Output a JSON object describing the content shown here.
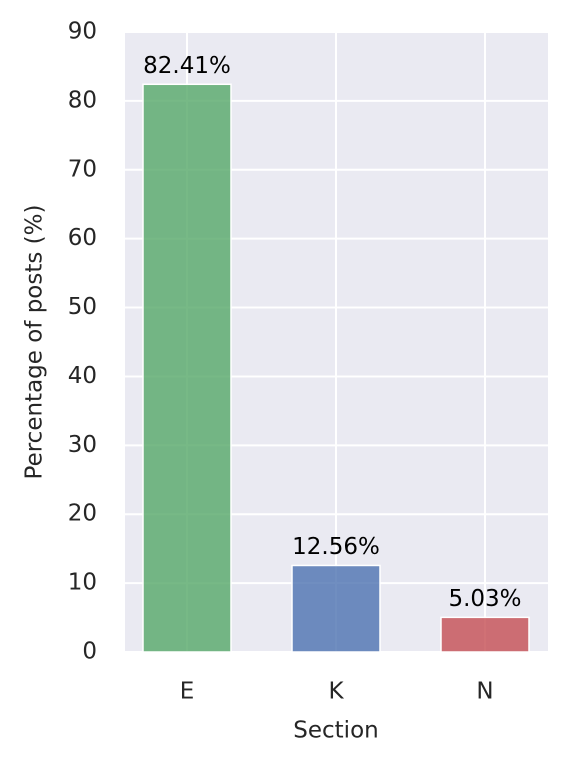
{
  "chart_data": {
    "type": "bar",
    "categories": [
      "E",
      "K",
      "N"
    ],
    "values": [
      82.41,
      12.56,
      5.03
    ],
    "value_labels": [
      "82.41%",
      "12.56%",
      "5.03%"
    ],
    "colors": [
      "#55a868",
      "#4c72b0",
      "#c44e52"
    ],
    "ylim": [
      0,
      90
    ],
    "yticks": [
      0,
      10,
      20,
      30,
      40,
      50,
      60,
      70,
      80,
      90
    ],
    "xlabel": "Section",
    "ylabel": "Percentage of posts (%)",
    "grid": true
  }
}
